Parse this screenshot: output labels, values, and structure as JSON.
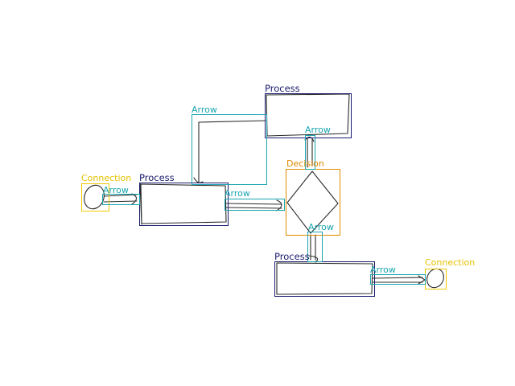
{
  "labels": {
    "process_top": "Process",
    "process_left": "Process",
    "process_bottom": "Process",
    "decision": "Decision",
    "connection_left": "Connection",
    "connection_right": "Connection",
    "arrow_1": "Arrow",
    "arrow_2": "Arrow",
    "arrow_3": "Arrow",
    "arrow_4": "Arrow",
    "arrow_5": "Arrow",
    "arrow_6": "Arrow"
  },
  "colors": {
    "process": "#1a1a6e",
    "arrow": "#1aa5b0",
    "decision": "#e08a00",
    "connection": "#f0c800",
    "sketch": "#2b2b2b"
  }
}
